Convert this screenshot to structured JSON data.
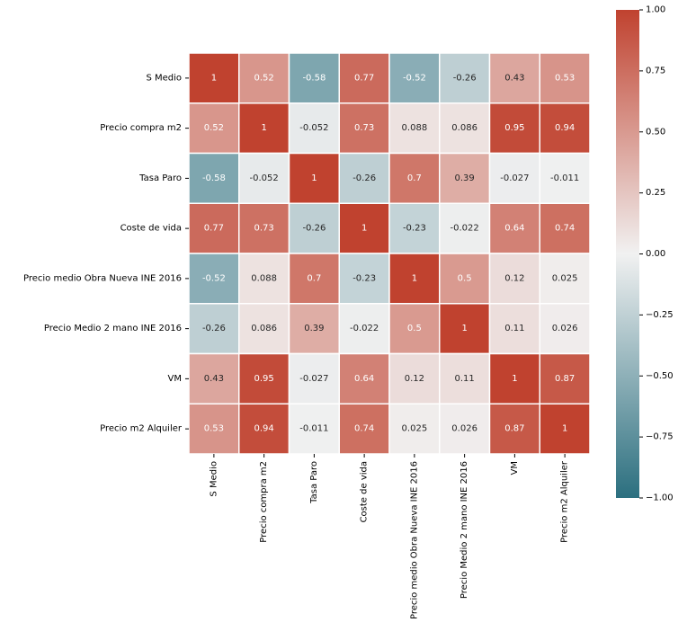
{
  "chart_data": {
    "type": "heatmap",
    "title": "",
    "xlabel": "",
    "ylabel": "",
    "row_labels": [
      "S Medio",
      "Precio compra m2",
      "Tasa Paro",
      "Coste de vida",
      "Precio medio Obra Nueva INE 2016",
      "Precio Medio 2 mano INE 2016",
      "VM",
      "Precio m2 Alquiler"
    ],
    "col_labels": [
      "S Medio",
      "Precio compra m2",
      "Tasa Paro",
      "Coste de vida",
      "Precio medio Obra Nueva INE 2016",
      "Precio Medio 2 mano INE 2016",
      "VM",
      "Precio m2 Alquiler"
    ],
    "values": [
      [
        1,
        0.52,
        -0.58,
        0.77,
        -0.52,
        -0.26,
        0.43,
        0.53
      ],
      [
        0.52,
        1,
        -0.052,
        0.73,
        0.088,
        0.086,
        0.95,
        0.94
      ],
      [
        -0.58,
        -0.052,
        1,
        -0.26,
        0.7,
        0.39,
        -0.027,
        -0.011
      ],
      [
        0.77,
        0.73,
        -0.26,
        1,
        -0.23,
        -0.022,
        0.64,
        0.74
      ],
      [
        -0.52,
        0.088,
        0.7,
        -0.23,
        1,
        0.5,
        0.12,
        0.025
      ],
      [
        -0.26,
        0.086,
        0.39,
        -0.022,
        0.5,
        1,
        0.11,
        0.026
      ],
      [
        0.43,
        0.95,
        -0.027,
        0.64,
        0.12,
        0.11,
        1,
        0.87
      ],
      [
        0.53,
        0.94,
        -0.011,
        0.74,
        0.025,
        0.026,
        0.87,
        1
      ]
    ],
    "annotations": [
      [
        "1",
        "0.52",
        "-0.58",
        "0.77",
        "-0.52",
        "-0.26",
        "0.43",
        "0.53"
      ],
      [
        "0.52",
        "1",
        "-0.052",
        "0.73",
        "0.088",
        "0.086",
        "0.95",
        "0.94"
      ],
      [
        "-0.58",
        "-0.052",
        "1",
        "-0.26",
        "0.7",
        "0.39",
        "-0.027",
        "-0.011"
      ],
      [
        "0.77",
        "0.73",
        "-0.26",
        "1",
        "-0.23",
        "-0.022",
        "0.64",
        "0.74"
      ],
      [
        "-0.52",
        "0.088",
        "0.7",
        "-0.23",
        "1",
        "0.5",
        "0.12",
        "0.025"
      ],
      [
        "-0.26",
        "0.086",
        "0.39",
        "-0.022",
        "0.5",
        "1",
        "0.11",
        "0.026"
      ],
      [
        "0.43",
        "0.95",
        "-0.027",
        "0.64",
        "0.12",
        "0.11",
        "1",
        "0.87"
      ],
      [
        "0.53",
        "0.94",
        "-0.011",
        "0.74",
        "0.025",
        "0.026",
        "0.87",
        "1"
      ]
    ],
    "vmin": -1,
    "vmax": 1,
    "colormap": {
      "low": "#2b6f7f",
      "mid": "#f1f1f1",
      "high": "#c0422f"
    },
    "colorbar": {
      "ticks": [
        1.0,
        0.75,
        0.5,
        0.25,
        0.0,
        -0.25,
        -0.5,
        -0.75,
        -1.0
      ],
      "tick_labels": [
        "1.00",
        "0.75",
        "0.50",
        "0.25",
        "0.00",
        "−0.25",
        "−0.50",
        "−0.75",
        "−1.00"
      ]
    },
    "grid": false,
    "legend": "colorbar-right"
  }
}
